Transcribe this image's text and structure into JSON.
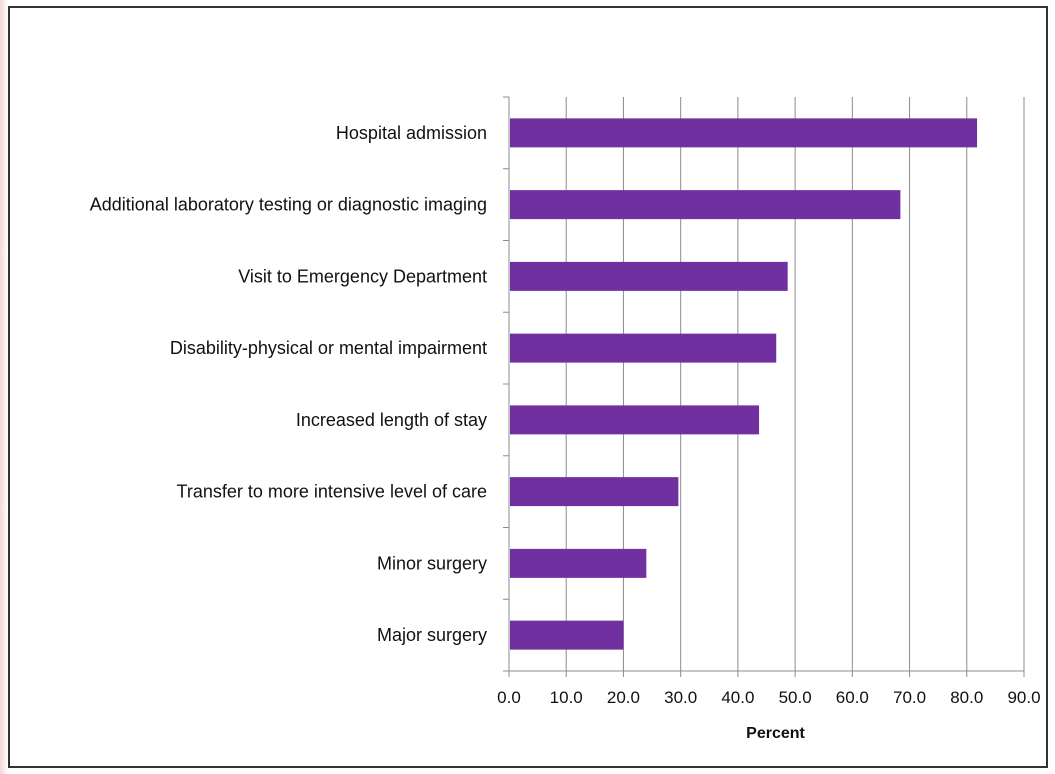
{
  "chart_data": {
    "type": "bar",
    "orientation": "horizontal",
    "categories": [
      "Hospital admission",
      "Additional laboratory testing or diagnostic imaging",
      "Visit to Emergency Department",
      "Disability-physical or mental impairment",
      "Increased length of stay",
      "Transfer to more intensive level of care",
      "Minor surgery",
      "Major surgery"
    ],
    "values": [
      81.8,
      68.4,
      48.7,
      46.7,
      43.7,
      29.6,
      24.0,
      20.0
    ],
    "xlabel": "Percent",
    "ylabel": "",
    "xlim": [
      0,
      90
    ],
    "xticks": [
      "0.0",
      "10.0",
      "20.0",
      "30.0",
      "40.0",
      "50.0",
      "60.0",
      "70.0",
      "80.0",
      "90.0"
    ],
    "grid": "vertical",
    "bar_color": "#7030a0",
    "legend": "none"
  }
}
